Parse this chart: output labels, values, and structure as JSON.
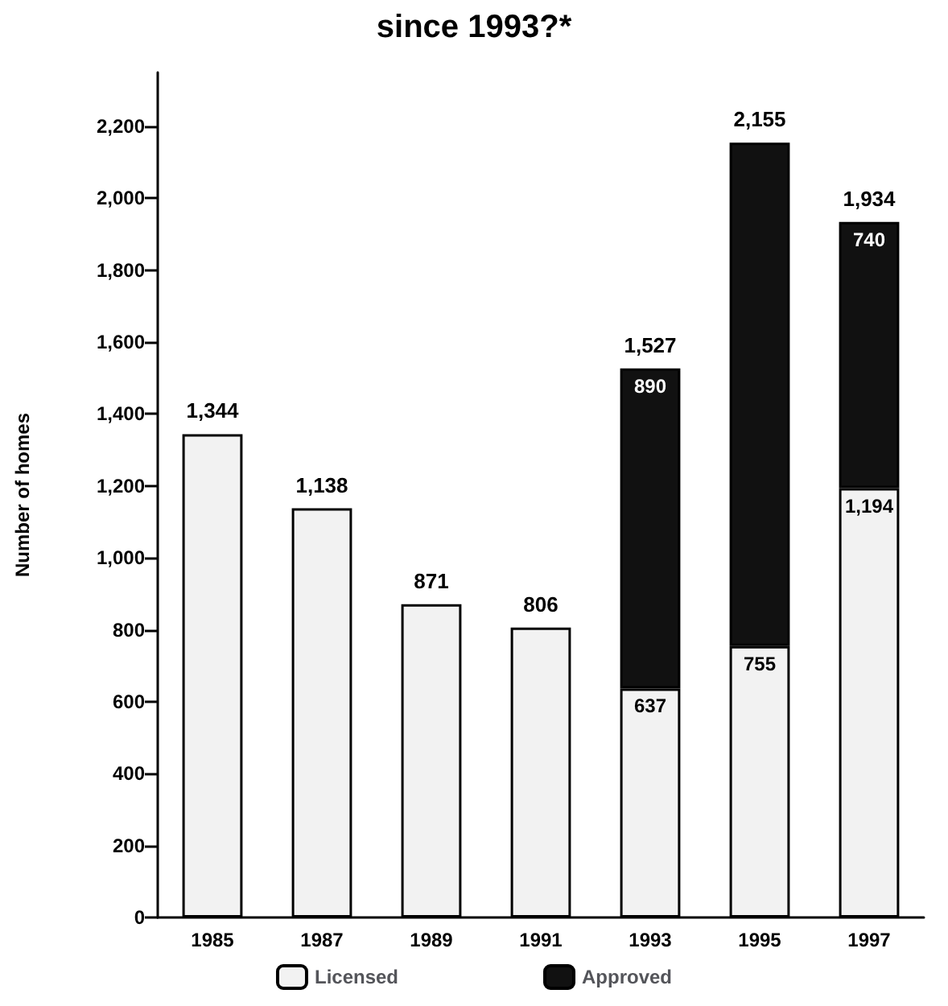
{
  "chart_data": {
    "type": "bar",
    "title": "since 1993?*",
    "ylabel": "Number of homes",
    "categories": [
      "1985",
      "1987",
      "1989",
      "1991",
      "1993",
      "1995",
      "1997"
    ],
    "stacked": true,
    "series": [
      {
        "name": "Licensed",
        "color": "#f2f2f2",
        "values": [
          1344,
          1138,
          871,
          806,
          637,
          755,
          1194
        ],
        "value_labels": [
          null,
          null,
          null,
          null,
          "637",
          "755",
          "1,194"
        ]
      },
      {
        "name": "Approved",
        "color": "#111111",
        "values": [
          null,
          null,
          null,
          null,
          890,
          1400,
          740
        ],
        "value_labels": [
          null,
          null,
          null,
          null,
          "890",
          null,
          "740"
        ]
      }
    ],
    "totals": [
      "1,344",
      "1,138",
      "871",
      "806",
      "1,527",
      "2,155",
      "1,934"
    ],
    "ylim": [
      0,
      2350
    ],
    "yticks": [
      0,
      200,
      400,
      600,
      800,
      {
        "value": 1000,
        "label": "1,000"
      },
      {
        "value": 1200,
        "label": "1,200"
      },
      {
        "value": 1400,
        "label": "1,400"
      },
      {
        "value": 1600,
        "label": "1,600"
      },
      {
        "value": 1800,
        "label": "1,800"
      },
      {
        "value": 2000,
        "label": "2,000"
      },
      {
        "value": 2200,
        "label": "2,200"
      }
    ],
    "grid": false,
    "legend": "bottom"
  }
}
